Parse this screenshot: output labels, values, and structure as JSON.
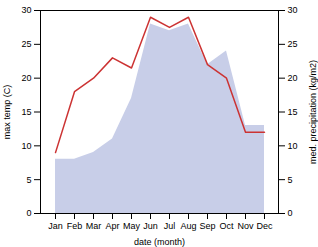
{
  "chart_data": {
    "type": "line",
    "xlabel": "date (month)",
    "ylabel": "max temp (C)",
    "y2label": "med. precipitation (kg/m2)",
    "categories": [
      "Jan",
      "Feb",
      "Mar",
      "Apr",
      "May",
      "Jun",
      "Jul",
      "Aug",
      "Sep",
      "Oct",
      "Nov",
      "Dec"
    ],
    "series": [
      {
        "type": "area",
        "axis": "y2",
        "color": "#c8cee8",
        "values": [
          8,
          8,
          9,
          11,
          17,
          28,
          27,
          28,
          22,
          24,
          13,
          13
        ]
      },
      {
        "type": "line",
        "color": "#cc3333",
        "values": [
          9,
          18,
          20,
          23,
          21.5,
          29,
          27.5,
          29,
          22,
          20,
          12,
          12
        ]
      }
    ],
    "ylim": [
      0,
      30
    ],
    "yticks": [
      0,
      5,
      10,
      15,
      20,
      25,
      30
    ],
    "y2lim": [
      0,
      30
    ],
    "y2ticks": [
      0,
      5,
      10,
      15,
      20,
      25,
      30
    ],
    "grid": false
  }
}
